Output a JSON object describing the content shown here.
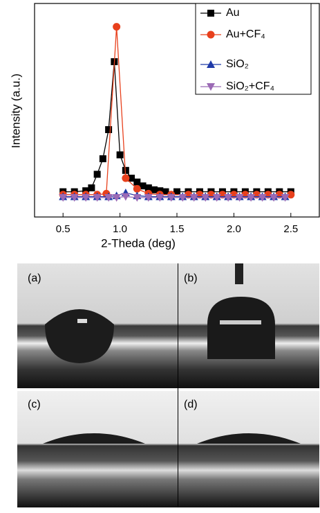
{
  "chart_data": {
    "type": "line",
    "xlabel": "2-Theda (deg)",
    "ylabel": "Intensity (a.u.)",
    "xlim": [
      0.25,
      2.75
    ],
    "ylim": [
      -1,
      10
    ],
    "xticks": [
      0.5,
      {
        "value": 1,
        "label": "1.0"
      },
      1.5,
      {
        "value": 2,
        "label": "2.0"
      },
      2.5
    ],
    "legend": "upper right",
    "series": [
      {
        "name": "Au",
        "color": "#000000",
        "marker": "square",
        "x": [
          0.5,
          0.6,
          0.7,
          0.75,
          0.8,
          0.85,
          0.9,
          0.95,
          1.0,
          1.05,
          1.1,
          1.15,
          1.2,
          1.25,
          1.3,
          1.35,
          1.4,
          1.5,
          1.6,
          1.7,
          1.8,
          1.9,
          2.0,
          2.1,
          2.2,
          2.3,
          2.4,
          2.5
        ],
        "values": [
          0.3,
          0.3,
          0.35,
          0.5,
          1.2,
          2.0,
          3.5,
          7.0,
          2.2,
          1.4,
          1.0,
          0.8,
          0.6,
          0.5,
          0.4,
          0.35,
          0.3,
          0.3,
          0.3,
          0.3,
          0.3,
          0.3,
          0.3,
          0.3,
          0.3,
          0.3,
          0.3,
          0.3
        ]
      },
      {
        "name": "Au+CF₄",
        "color": "#e8401c",
        "marker": "circle",
        "x": [
          0.5,
          0.6,
          0.7,
          0.8,
          0.88,
          0.97,
          1.05,
          1.15,
          1.25,
          1.35,
          1.45,
          1.6,
          1.7,
          1.8,
          1.9,
          2.0,
          2.1,
          2.2,
          2.3,
          2.4,
          2.5
        ],
        "values": [
          0.15,
          0.15,
          0.15,
          0.15,
          0.2,
          8.8,
          1.0,
          0.45,
          0.2,
          0.15,
          0.15,
          0.15,
          0.15,
          0.15,
          0.15,
          0.15,
          0.15,
          0.15,
          0.15,
          0.15,
          0.15
        ]
      },
      {
        "name": "SiO₂",
        "color": "#1f3aa8",
        "marker": "triangle-up",
        "x": [
          0.5,
          0.6,
          0.7,
          0.8,
          0.9,
          0.97,
          1.05,
          1.15,
          1.25,
          1.35,
          1.45,
          1.55,
          1.65,
          1.75,
          1.85,
          1.95,
          2.05,
          2.15,
          2.25,
          2.35,
          2.45
        ],
        "values": [
          0.05,
          0.05,
          0.05,
          0.05,
          0.05,
          0.1,
          0.25,
          0.1,
          0.05,
          0.05,
          0.05,
          0.05,
          0.05,
          0.05,
          0.05,
          0.05,
          0.05,
          0.05,
          0.05,
          0.05,
          0.05
        ]
      },
      {
        "name": "SiO₂+CF₄",
        "color": "#9b6ab5",
        "marker": "triangle-down",
        "x": [
          0.5,
          0.6,
          0.7,
          0.8,
          0.9,
          0.97,
          1.05,
          1.15,
          1.25,
          1.35,
          1.45,
          1.55,
          1.65,
          1.75,
          1.85,
          1.95,
          2.05,
          2.15,
          2.25,
          2.35,
          2.45
        ],
        "values": [
          0,
          0,
          0,
          0,
          0,
          0,
          0.05,
          0,
          0,
          0,
          0,
          0,
          0,
          0,
          0,
          0,
          0,
          0,
          0,
          0,
          0
        ]
      }
    ]
  },
  "panels": [
    "(a)",
    "(b)",
    "(c)",
    "(d)"
  ]
}
